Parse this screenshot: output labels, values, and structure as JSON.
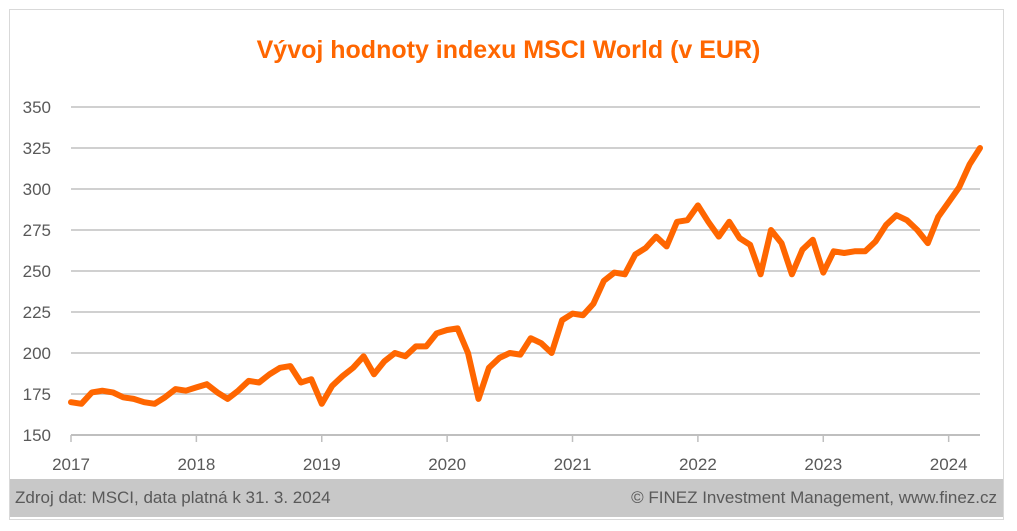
{
  "chart_data": {
    "type": "line",
    "title": "Vývoj hodnoty indexu MSCI World (v EUR)",
    "xlabel": "",
    "ylabel": "",
    "ylim": [
      150,
      350
    ],
    "yticks": [
      150,
      175,
      200,
      225,
      250,
      275,
      300,
      325,
      350
    ],
    "xticks": [
      "2017",
      "2018",
      "2019",
      "2020",
      "2021",
      "2022",
      "2023",
      "2024"
    ],
    "grid": true,
    "color": "#ff6600",
    "x_start": "2017-01",
    "x_step": "month",
    "series": [
      {
        "name": "MSCI World (EUR)",
        "values": [
          170,
          169,
          176,
          177,
          176,
          173,
          172,
          170,
          169,
          173,
          178,
          177,
          179,
          181,
          176,
          172,
          177,
          183,
          182,
          187,
          191,
          192,
          182,
          184,
          169,
          180,
          186,
          191,
          198,
          187,
          195,
          200,
          198,
          204,
          204,
          212,
          214,
          215,
          200,
          172,
          191,
          197,
          200,
          199,
          209,
          206,
          200,
          220,
          224,
          223,
          230,
          244,
          249,
          248,
          260,
          264,
          271,
          265,
          280,
          281,
          290,
          280,
          271,
          280,
          270,
          266,
          248,
          275,
          267,
          248,
          263,
          269,
          249,
          262,
          261,
          262,
          262,
          268,
          278,
          284,
          281,
          275,
          267,
          283,
          292,
          301,
          315,
          325
        ]
      }
    ]
  },
  "footer": {
    "source": "Zdroj dat: MSCI, data platná k 31. 3. 2024",
    "credit": "© FINEZ Investment Management, www.finez.cz"
  }
}
